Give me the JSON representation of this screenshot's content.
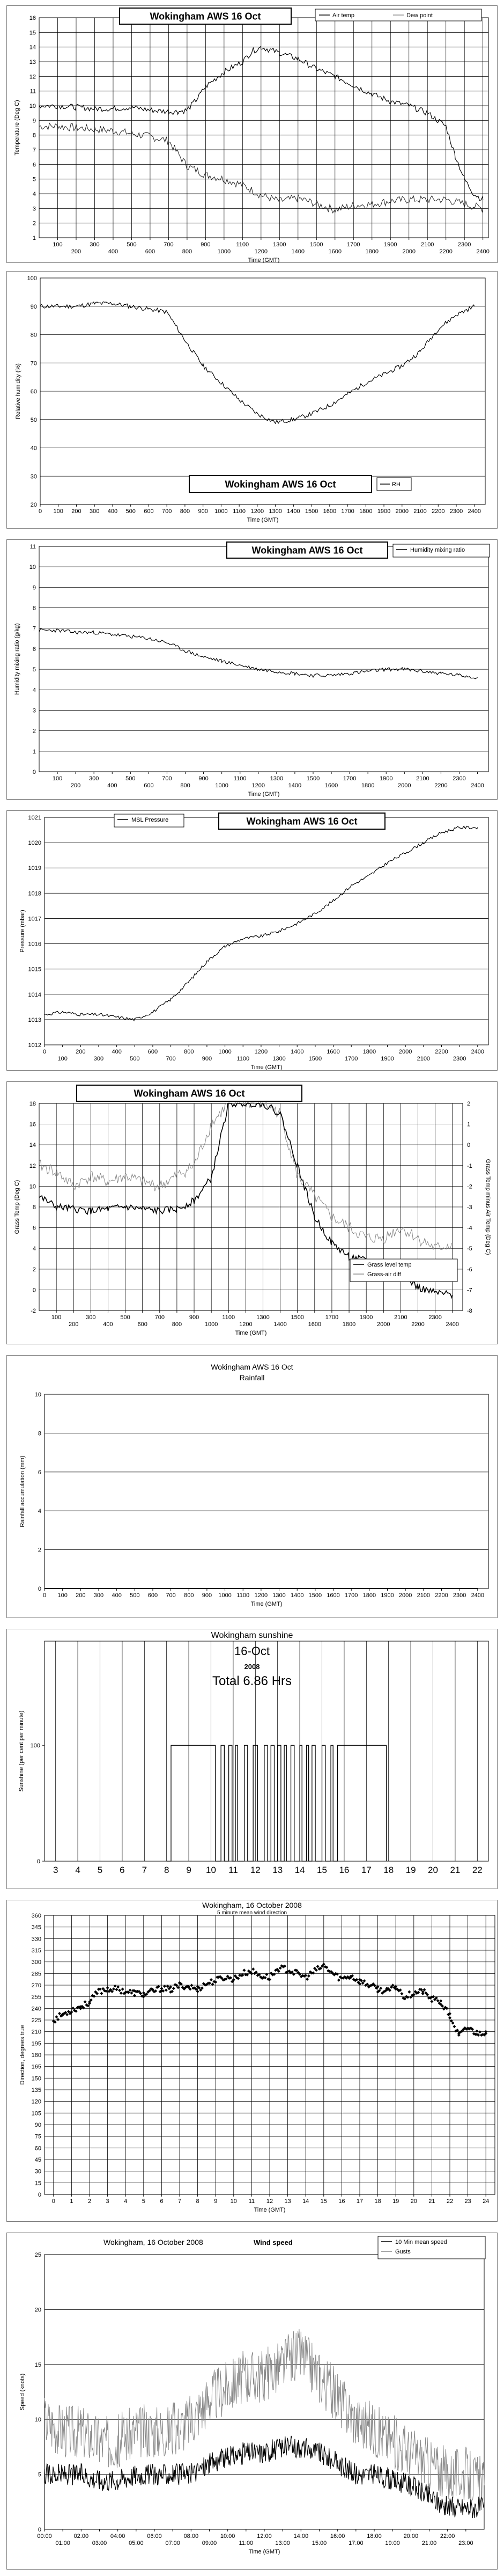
{
  "panels": [
    {
      "id": "temp",
      "title": "Wokingham AWS 16 Oct",
      "ylabel": "Temperature (Deg C)",
      "xlabel": "Time (GMT)",
      "legend": [
        "Air temp",
        "Dew point"
      ]
    },
    {
      "id": "rh",
      "title": "Wokingham AWS 16 Oct",
      "ylabel": "Relative humidity (%)",
      "xlabel": "Time (GMT)",
      "legend": [
        "RH"
      ]
    },
    {
      "id": "mix",
      "title": "Wokingham AWS 16 Oct",
      "ylabel": "Humidity mixing ratio (g/kg)",
      "xlabel": "Time (GMT)",
      "legend": [
        "Humidity mixing ratio"
      ]
    },
    {
      "id": "pres",
      "title": "Wokingham AWS 16 Oct",
      "ylabel": "Pressure (mbar)",
      "xlabel": "Time (GMT)",
      "legend": [
        "MSL Pressure"
      ]
    },
    {
      "id": "grass",
      "title": "Wokingham AWS 16 Oct",
      "ylabel": "Grass Temp (Deg C)",
      "ylabel2": "Grass Temp minus Air Temp (Deg C)",
      "xlabel": "Time (GMT)",
      "legend": [
        "Grass level temp",
        "Grass-air diff"
      ]
    },
    {
      "id": "rain",
      "title": "Wokingham AWS 16 Oct",
      "subtitle": "Rainfall",
      "ylabel": "Rainfall accumulation (mm)",
      "xlabel": "Time (GMT)"
    },
    {
      "id": "sun",
      "title": "Wokingham sunshine",
      "subtitle": "16-Oct",
      "year": "2008",
      "total": "Total 6.86 Hrs",
      "ylabel": "Sunshine (per cent per minute)"
    },
    {
      "id": "dir",
      "title": "Wokingham,  16 October 2008",
      "subtitle": "5 minute mean wind direction",
      "ylabel": "Direction, degrees true",
      "xlabel": "Time (GMT)"
    },
    {
      "id": "speed",
      "title": "Wokingham,  16 October 2008",
      "title_suffix": "Wind speed",
      "ylabel": "Speed (knots)",
      "xlabel": "Time (GMT)",
      "legend": [
        "10 Min mean speed",
        "Gusts"
      ]
    }
  ],
  "chart_data": [
    {
      "type": "line",
      "title": "Wokingham AWS 16 Oct",
      "xlabel": "Time (GMT)",
      "ylabel": "Temperature (Deg C)",
      "x_ticks": [
        100,
        200,
        300,
        400,
        500,
        600,
        700,
        800,
        900,
        1000,
        1100,
        1200,
        1300,
        1400,
        1500,
        1600,
        1700,
        1800,
        1900,
        2000,
        2100,
        2200,
        2300,
        2400
      ],
      "xlim": [
        0,
        2430
      ],
      "ylim": [
        1,
        16
      ],
      "series": [
        {
          "name": "Air temp",
          "x": [
            0,
            100,
            200,
            300,
            400,
            500,
            600,
            700,
            750,
            800,
            850,
            900,
            1000,
            1100,
            1150,
            1200,
            1250,
            1300,
            1400,
            1500,
            1600,
            1700,
            1800,
            1900,
            2000,
            2100,
            2200,
            2250,
            2300,
            2350,
            2400
          ],
          "y": [
            10.0,
            10.0,
            9.9,
            9.8,
            9.8,
            9.9,
            9.7,
            9.6,
            9.6,
            9.7,
            10.4,
            11.3,
            12.3,
            13.0,
            13.7,
            14.0,
            13.8,
            13.6,
            13.2,
            12.5,
            12.0,
            11.4,
            10.8,
            10.3,
            10.0,
            9.5,
            8.6,
            6.6,
            5.0,
            4.0,
            3.6
          ]
        },
        {
          "name": "Dew point",
          "x": [
            0,
            100,
            200,
            300,
            400,
            500,
            600,
            700,
            800,
            900,
            1000,
            1100,
            1200,
            1300,
            1400,
            1500,
            1600,
            1700,
            1800,
            1900,
            2000,
            2100,
            2200,
            2300,
            2400
          ],
          "y": [
            8.6,
            8.6,
            8.5,
            8.4,
            8.3,
            8.1,
            7.9,
            7.6,
            5.9,
            5.3,
            5.0,
            4.6,
            3.9,
            3.5,
            3.7,
            3.3,
            2.9,
            3.2,
            3.3,
            3.5,
            3.6,
            3.6,
            3.6,
            3.3,
            3.0
          ]
        }
      ]
    },
    {
      "type": "line",
      "title": "Wokingham AWS 16 Oct",
      "xlabel": "Time (GMT)",
      "ylabel": "Relative humidity (%)",
      "x_ticks": [
        0,
        100,
        200,
        300,
        400,
        500,
        600,
        700,
        800,
        900,
        1000,
        1100,
        1200,
        1300,
        1400,
        1500,
        1600,
        1700,
        1800,
        1900,
        2000,
        2100,
        2200,
        2300,
        2400
      ],
      "xlim": [
        0,
        2460
      ],
      "ylim": [
        20,
        100
      ],
      "series": [
        {
          "name": "RH",
          "x": [
            0,
            100,
            200,
            300,
            400,
            500,
            600,
            700,
            800,
            900,
            1000,
            1100,
            1200,
            1300,
            1400,
            1500,
            1600,
            1700,
            1800,
            1900,
            2000,
            2100,
            2200,
            2300,
            2400
          ],
          "y": [
            90,
            90,
            90,
            91,
            91,
            90,
            89,
            88,
            78,
            69,
            63,
            57,
            52,
            49,
            50,
            52,
            55,
            59,
            63,
            66,
            69,
            74,
            82,
            87,
            90
          ]
        }
      ]
    },
    {
      "type": "line",
      "title": "Wokingham AWS 16 Oct",
      "xlabel": "Time (GMT)",
      "ylabel": "Humidity mixing ratio (g/kg)",
      "x_ticks": [
        100,
        200,
        300,
        400,
        500,
        600,
        700,
        800,
        900,
        1000,
        1100,
        1200,
        1300,
        1400,
        1500,
        1600,
        1700,
        1800,
        1900,
        2000,
        2100,
        2200,
        2300,
        2400
      ],
      "xlim": [
        0,
        2460
      ],
      "ylim": [
        0,
        11
      ],
      "series": [
        {
          "name": "Humidity mixing ratio",
          "x": [
            0,
            100,
            200,
            300,
            400,
            500,
            600,
            700,
            800,
            900,
            1000,
            1100,
            1200,
            1300,
            1400,
            1500,
            1600,
            1700,
            1800,
            1900,
            2000,
            2100,
            2200,
            2300,
            2400
          ],
          "y": [
            6.9,
            6.9,
            6.8,
            6.8,
            6.7,
            6.6,
            6.5,
            6.3,
            5.9,
            5.6,
            5.4,
            5.2,
            5.0,
            4.9,
            4.8,
            4.7,
            4.7,
            4.8,
            4.9,
            5.0,
            5.0,
            4.9,
            4.8,
            4.7,
            4.6
          ]
        }
      ]
    },
    {
      "type": "line",
      "title": "Wokingham AWS 16 Oct",
      "xlabel": "Time (GMT)",
      "ylabel": "Pressure (mbar)",
      "x_ticks": [
        0,
        100,
        200,
        300,
        400,
        500,
        600,
        700,
        800,
        900,
        1000,
        1100,
        1200,
        1300,
        1400,
        1500,
        1600,
        1700,
        1800,
        1900,
        2000,
        2100,
        2200,
        2300,
        2400
      ],
      "xlim": [
        0,
        2460
      ],
      "ylim": [
        1012,
        1021
      ],
      "series": [
        {
          "name": "MSL Pressure",
          "x": [
            0,
            100,
            200,
            300,
            400,
            500,
            600,
            700,
            800,
            900,
            1000,
            1100,
            1200,
            1300,
            1400,
            1500,
            1600,
            1700,
            1800,
            1900,
            2000,
            2100,
            2200,
            2300,
            2400
          ],
          "y": [
            1013.2,
            1013.3,
            1013.2,
            1013.2,
            1013.1,
            1013.0,
            1013.3,
            1013.8,
            1014.5,
            1015.3,
            1015.9,
            1016.2,
            1016.3,
            1016.5,
            1016.8,
            1017.2,
            1017.7,
            1018.3,
            1018.7,
            1019.2,
            1019.6,
            1020.0,
            1020.4,
            1020.6,
            1020.6
          ]
        }
      ]
    },
    {
      "type": "line",
      "title": "Wokingham AWS 16 Oct",
      "xlabel": "Time (GMT)",
      "ylabel": "Grass Temp (Deg C)",
      "y2label": "Grass Temp minus Air Temp (Deg C)",
      "x_ticks": [
        100,
        200,
        300,
        400,
        500,
        600,
        700,
        800,
        900,
        1000,
        1100,
        1200,
        1300,
        1400,
        1500,
        1600,
        1700,
        1800,
        1900,
        2000,
        2100,
        2200,
        2300,
        2400
      ],
      "xlim": [
        0,
        2460
      ],
      "ylim": [
        -2,
        18
      ],
      "y2lim": [
        -8,
        2
      ],
      "series": [
        {
          "name": "Grass level temp",
          "axis": "left",
          "x": [
            0,
            100,
            200,
            300,
            400,
            500,
            600,
            700,
            800,
            900,
            1000,
            1100,
            1200,
            1300,
            1400,
            1500,
            1600,
            1700,
            1800,
            1900,
            2000,
            2100,
            2200,
            2300,
            2400
          ],
          "y": [
            9.0,
            8.0,
            7.8,
            7.6,
            7.8,
            8.0,
            7.8,
            7.6,
            7.8,
            8.6,
            10.8,
            18,
            18,
            18,
            17,
            12,
            7,
            4.5,
            3.2,
            2.8,
            2.4,
            1.6,
            0.2,
            -0.3,
            -0.5
          ]
        },
        {
          "name": "Grass-air diff",
          "axis": "right",
          "x": [
            0,
            100,
            200,
            300,
            400,
            500,
            600,
            700,
            800,
            900,
            1000,
            1100,
            1200,
            1300,
            1400,
            1500,
            1600,
            1700,
            1800,
            1900,
            2000,
            2100,
            2200,
            2300,
            2400
          ],
          "y": [
            -1.0,
            -1.3,
            -2.0,
            -1.5,
            -1.8,
            -1.5,
            -1.8,
            -2.0,
            -1.5,
            -1.0,
            1.0,
            2.0,
            2.0,
            2.0,
            1.5,
            -1.5,
            -2.5,
            -3.5,
            -4.0,
            -4.5,
            -4.5,
            -4.0,
            -4.5,
            -5.0,
            -4.8
          ]
        }
      ]
    },
    {
      "type": "line",
      "title": "Wokingham AWS 16 Oct",
      "subtitle": "Rainfall",
      "xlabel": "Time (GMT)",
      "ylabel": "Rainfall accumulation (mm)",
      "x_ticks": [
        0,
        100,
        200,
        300,
        400,
        500,
        600,
        700,
        800,
        900,
        1000,
        1100,
        1200,
        1300,
        1400,
        1500,
        1600,
        1700,
        1800,
        1900,
        2000,
        2100,
        2200,
        2300,
        2400
      ],
      "xlim": [
        0,
        2460
      ],
      "ylim": [
        0,
        10
      ],
      "series": [
        {
          "name": "",
          "x": [
            0,
            2400
          ],
          "y": [
            0,
            0
          ]
        }
      ]
    },
    {
      "type": "area",
      "title": "Wokingham sunshine",
      "subtitle": "16-Oct",
      "xlabel": "",
      "ylabel": "Sunshine (per cent per minute)",
      "x_ticks": [
        3,
        4,
        5,
        6,
        7,
        8,
        9,
        10,
        11,
        12,
        13,
        14,
        15,
        16,
        17,
        18,
        19,
        20,
        21,
        22
      ],
      "xlim": [
        2.5,
        22.5
      ],
      "ylim": [
        0,
        100
      ],
      "sunshine_intervals": [
        [
          8.2,
          10.2
        ],
        [
          10.45,
          10.6
        ],
        [
          10.8,
          10.95
        ],
        [
          11.1,
          11.2
        ],
        [
          11.5,
          11.65
        ],
        [
          11.9,
          12.1
        ],
        [
          12.4,
          12.55
        ],
        [
          12.7,
          12.85
        ],
        [
          13.0,
          13.15
        ],
        [
          13.3,
          13.4
        ],
        [
          13.6,
          13.75
        ],
        [
          14.0,
          14.1
        ],
        [
          14.3,
          14.4
        ],
        [
          14.55,
          14.7
        ],
        [
          15.0,
          15.15
        ],
        [
          15.4,
          15.5
        ],
        [
          15.7,
          17.9
        ]
      ]
    },
    {
      "type": "scatter",
      "title": "Wokingham,  16 October 2008",
      "subtitle": "5 minute mean wind direction",
      "xlabel": "Time (GMT)",
      "ylabel": "Direction, degrees true",
      "x_ticks": [
        0,
        1,
        2,
        3,
        4,
        5,
        6,
        7,
        8,
        9,
        10,
        11,
        12,
        13,
        14,
        15,
        16,
        17,
        18,
        19,
        20,
        21,
        22,
        23,
        24
      ],
      "xlim": [
        -0.5,
        24.5
      ],
      "ylim": [
        0,
        360
      ],
      "y_ticks": [
        0,
        15,
        30,
        45,
        60,
        75,
        90,
        105,
        120,
        135,
        150,
        165,
        180,
        195,
        210,
        225,
        240,
        255,
        270,
        285,
        300,
        315,
        330,
        345,
        360
      ],
      "series": [
        {
          "name": "",
          "x": [
            0,
            0.5,
            1,
            1.5,
            2,
            2.5,
            3,
            3.5,
            4,
            4.5,
            5,
            5.5,
            6,
            6.5,
            7,
            7.5,
            8,
            8.5,
            9,
            9.5,
            10,
            10.5,
            11,
            11.5,
            12,
            12.5,
            13,
            13.5,
            14,
            14.5,
            15,
            15.5,
            16,
            16.5,
            17,
            17.5,
            18,
            18.5,
            19,
            19.5,
            20,
            20.5,
            21,
            21.5,
            22,
            22.5,
            23,
            23.5,
            24
          ],
          "y": [
            225,
            232,
            238,
            242,
            248,
            262,
            265,
            265,
            262,
            260,
            258,
            262,
            266,
            264,
            270,
            268,
            265,
            272,
            276,
            280,
            278,
            285,
            288,
            282,
            280,
            292,
            290,
            285,
            280,
            288,
            295,
            285,
            278,
            282,
            275,
            270,
            265,
            262,
            268,
            255,
            260,
            262,
            252,
            248,
            230,
            205,
            215,
            208,
            210
          ]
        }
      ]
    },
    {
      "type": "line",
      "title": "Wokingham,  16 October 2008",
      "xlabel": "Time (GMT)",
      "ylabel": "Speed (knots)",
      "x_ticks": [
        "00:00",
        "01:00",
        "02:00",
        "03:00",
        "04:00",
        "05:00",
        "06:00",
        "07:00",
        "08:00",
        "09:00",
        "10:00",
        "11:00",
        "12:00",
        "13:00",
        "14:00",
        "15:00",
        "16:00",
        "17:00",
        "18:00",
        "19:00",
        "20:00",
        "21:00",
        "22:00",
        "23:00"
      ],
      "xlim": [
        0,
        24
      ],
      "ylim": [
        0,
        25
      ],
      "series": [
        {
          "name": "10 Min mean speed",
          "x": [
            0,
            1,
            2,
            3,
            4,
            5,
            6,
            7,
            8,
            9,
            10,
            11,
            12,
            13,
            14,
            15,
            16,
            17,
            18,
            19,
            20,
            21,
            22,
            23,
            24
          ],
          "y": [
            5,
            5,
            5,
            4.5,
            4.5,
            5,
            5,
            5,
            5,
            6,
            6.5,
            7,
            7,
            7.5,
            7.5,
            7,
            6,
            5,
            5,
            4.5,
            4,
            3,
            2,
            2,
            2
          ]
        },
        {
          "name": "Gusts",
          "x": [
            0,
            1,
            2,
            3,
            4,
            5,
            6,
            7,
            8,
            9,
            10,
            11,
            12,
            13,
            14,
            15,
            16,
            17,
            18,
            19,
            20,
            21,
            22,
            23,
            24
          ],
          "y": [
            10,
            9,
            9,
            8,
            8,
            9,
            9,
            9,
            10,
            12,
            13,
            14,
            14,
            15,
            16,
            14,
            12,
            10,
            9,
            8,
            7,
            6,
            5,
            5,
            4
          ]
        }
      ]
    }
  ]
}
